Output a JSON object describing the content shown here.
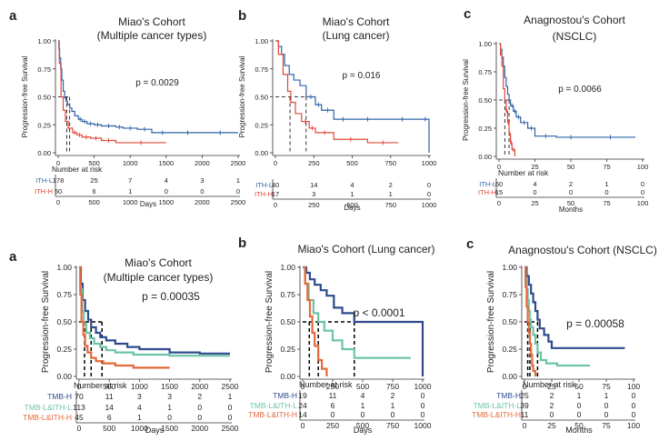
{
  "colors": {
    "ith_l": "#2e63a6",
    "ith_h": "#e0483a",
    "tmb_h": "#2f4b8c",
    "tmb_l_ith_l": "#6ec3a7",
    "tmb_l_ith_h": "#e36a3a",
    "axis": "#333333",
    "median_line": "#000000"
  },
  "chart_data": [
    {
      "type": "line",
      "panel_letter": "a",
      "title": "Miao's Cohort",
      "subtitle": "(Multiple cancer types)",
      "ylabel": "Progression-free Survival",
      "xlabel": "Days",
      "xlim": [
        0,
        2500
      ],
      "ylim": [
        0,
        1
      ],
      "xticks": [
        "0",
        "500",
        "1000",
        "1500",
        "2000",
        "2500"
      ],
      "yticks": [
        "0.00",
        "0.25",
        "0.50",
        "0.75",
        "1.00"
      ],
      "p_value": "p = 0.0029",
      "risk_title": "Number at risk",
      "series": [
        {
          "name": "ITH-L",
          "color_key": "ith_l",
          "risk": [
            "178",
            "25",
            "7",
            "4",
            "3",
            "1"
          ],
          "x": [
            0,
            10,
            20,
            35,
            50,
            70,
            90,
            110,
            130,
            160,
            190,
            230,
            280,
            330,
            400,
            500,
            600,
            800,
            900,
            1100,
            1300,
            1600,
            2000,
            2500
          ],
          "y": [
            1.0,
            0.93,
            0.85,
            0.75,
            0.65,
            0.55,
            0.49,
            0.46,
            0.43,
            0.4,
            0.37,
            0.33,
            0.3,
            0.28,
            0.26,
            0.25,
            0.24,
            0.23,
            0.22,
            0.21,
            0.18,
            0.18,
            0.18,
            0.18
          ]
        },
        {
          "name": "ITH-H",
          "color_key": "ith_h",
          "risk": [
            "50",
            "6",
            "1",
            "0",
            "0",
            "0"
          ],
          "x": [
            0,
            15,
            40,
            70,
            100,
            140,
            200,
            260,
            330,
            450,
            600,
            800,
            1500
          ],
          "y": [
            1.0,
            0.8,
            0.5,
            0.38,
            0.28,
            0.22,
            0.18,
            0.16,
            0.14,
            0.13,
            0.11,
            0.09,
            0.09
          ]
        }
      ],
      "medians": [
        120,
        160
      ]
    },
    {
      "type": "line",
      "panel_letter": "b",
      "title": "Miao's Cohort",
      "subtitle": "(Lung cancer)",
      "ylabel": "Progression-free Survival",
      "xlabel": "Days",
      "xlim": [
        0,
        1000
      ],
      "ylim": [
        0,
        1
      ],
      "xticks": [
        "0",
        "250",
        "500",
        "750",
        "1000"
      ],
      "yticks": [
        "0.00",
        "0.25",
        "0.50",
        "0.75",
        "1.00"
      ],
      "p_value": "p = 0.016",
      "risk_title": "",
      "series": [
        {
          "name": "ITH-L",
          "color_key": "ith_l",
          "risk": [
            "40",
            "14",
            "4",
            "2",
            "0"
          ],
          "x": [
            0,
            20,
            40,
            60,
            90,
            120,
            160,
            200,
            260,
            300,
            380,
            500,
            700,
            950,
            1000
          ],
          "y": [
            1.0,
            0.95,
            0.88,
            0.78,
            0.7,
            0.65,
            0.6,
            0.5,
            0.43,
            0.38,
            0.3,
            0.3,
            0.3,
            0.3,
            0.0
          ]
        },
        {
          "name": "ITH-H",
          "color_key": "ith_h",
          "risk": [
            "17",
            "3",
            "1",
            "1",
            "0"
          ],
          "x": [
            0,
            20,
            50,
            80,
            100,
            130,
            170,
            220,
            260,
            380,
            600,
            800
          ],
          "y": [
            1.0,
            0.88,
            0.7,
            0.55,
            0.45,
            0.35,
            0.28,
            0.22,
            0.18,
            0.12,
            0.09,
            0.09
          ]
        }
      ],
      "medians": [
        95,
        200
      ]
    },
    {
      "type": "line",
      "panel_letter": "c",
      "title": "Anagnostou's Cohort",
      "subtitle": "(NSCLC)",
      "ylabel": "Progression-free Survival",
      "xlabel": "Months",
      "xlim": [
        0,
        100
      ],
      "ylim": [
        0,
        1
      ],
      "xticks": [
        "0",
        "25",
        "50",
        "75",
        "100"
      ],
      "yticks": [
        "0.00",
        "0.25",
        "0.50",
        "0.75",
        "1.00"
      ],
      "p_value": "p = 0.0066",
      "risk_title": "Number at risk",
      "series": [
        {
          "name": "ITH-L",
          "color_key": "ith_l",
          "risk": [
            "60",
            "4",
            "2",
            "1",
            "0"
          ],
          "x": [
            0,
            1,
            2,
            3,
            4,
            5,
            6,
            7,
            8,
            10,
            12,
            15,
            20,
            25,
            40,
            60,
            95
          ],
          "y": [
            1.0,
            0.95,
            0.88,
            0.8,
            0.7,
            0.62,
            0.55,
            0.5,
            0.45,
            0.4,
            0.35,
            0.3,
            0.25,
            0.18,
            0.17,
            0.17,
            0.17
          ]
        },
        {
          "name": "ITH-H",
          "color_key": "ith_h",
          "risk": [
            "15",
            "0",
            "0",
            "0",
            "0"
          ],
          "x": [
            0,
            1,
            2,
            3,
            4,
            5,
            6,
            7,
            8,
            9,
            11
          ],
          "y": [
            1.0,
            0.9,
            0.8,
            0.6,
            0.5,
            0.4,
            0.3,
            0.2,
            0.12,
            0.06,
            0.0
          ]
        }
      ],
      "medians": [
        4,
        7
      ]
    },
    {
      "type": "line",
      "panel_letter": "a",
      "title": "Miao's Cohort",
      "subtitle": "(Multiple cancer types)",
      "ylabel": "Progression-free Survival",
      "xlabel": "Days",
      "xlim": [
        0,
        2500
      ],
      "ylim": [
        0,
        1
      ],
      "xticks": [
        "0",
        "500",
        "1000",
        "1500",
        "2000",
        "2500"
      ],
      "yticks": [
        "0.00",
        "0.25",
        "0.50",
        "0.75",
        "1.00"
      ],
      "p_value": "p = 0.00035",
      "risk_title": "Number at risk",
      "series": [
        {
          "name": "TMB-H",
          "color_key": "tmb_h",
          "risk": [
            "70",
            "11",
            "3",
            "3",
            "2",
            "1"
          ],
          "x": [
            0,
            30,
            60,
            100,
            150,
            200,
            280,
            350,
            450,
            600,
            800,
            1000,
            1500,
            2000,
            2500
          ],
          "y": [
            1.0,
            0.85,
            0.7,
            0.6,
            0.52,
            0.45,
            0.4,
            0.36,
            0.33,
            0.3,
            0.27,
            0.25,
            0.22,
            0.21,
            0.21
          ]
        },
        {
          "name": "TMB-L&ITH-L",
          "color_key": "tmb_l_ith_l",
          "risk": [
            "113",
            "14",
            "4",
            "1",
            "0",
            "0"
          ],
          "x": [
            0,
            20,
            50,
            80,
            120,
            180,
            250,
            350,
            450,
            600,
            900,
            1500,
            2000,
            2500
          ],
          "y": [
            1.0,
            0.8,
            0.6,
            0.48,
            0.4,
            0.35,
            0.3,
            0.27,
            0.24,
            0.22,
            0.2,
            0.19,
            0.19,
            0.19
          ]
        },
        {
          "name": "TMB-L&ITH-H",
          "color_key": "tmb_l_ith_h",
          "risk": [
            "45",
            "6",
            "1",
            "0",
            "0",
            "0"
          ],
          "x": [
            0,
            20,
            40,
            70,
            100,
            140,
            200,
            280,
            400,
            600,
            900,
            1500
          ],
          "y": [
            1.0,
            0.75,
            0.5,
            0.38,
            0.28,
            0.22,
            0.17,
            0.14,
            0.12,
            0.1,
            0.08,
            0.08
          ]
        }
      ],
      "medians": [
        90,
        200,
        380
      ]
    },
    {
      "type": "line",
      "panel_letter": "b",
      "title": "Miao's Cohort (Lung cancer)",
      "subtitle": "",
      "ylabel": "Progression-free Survival",
      "xlabel": "Days",
      "xlim": [
        0,
        1000
      ],
      "ylim": [
        0,
        1
      ],
      "xticks": [
        "0",
        "250",
        "500",
        "750",
        "1000"
      ],
      "yticks": [
        "0.00",
        "0.25",
        "0.50",
        "0.75",
        "1.00"
      ],
      "p_value": "p < 0.0001",
      "risk_title": "Number at risk",
      "series": [
        {
          "name": "TMB-H",
          "color_key": "tmb_h",
          "risk": [
            "19",
            "11",
            "4",
            "2",
            "0"
          ],
          "x": [
            0,
            30,
            60,
            100,
            150,
            200,
            260,
            330,
            430,
            500,
            700,
            950,
            1000
          ],
          "y": [
            1.0,
            0.95,
            0.89,
            0.84,
            0.79,
            0.74,
            0.63,
            0.58,
            0.5,
            0.5,
            0.5,
            0.5,
            0.0
          ]
        },
        {
          "name": "TMB-L&ITH-L",
          "color_key": "tmb_l_ith_l",
          "risk": [
            "24",
            "6",
            "1",
            "1",
            "0"
          ],
          "x": [
            0,
            20,
            50,
            90,
            130,
            180,
            250,
            330,
            430,
            700,
            900
          ],
          "y": [
            1.0,
            0.85,
            0.7,
            0.58,
            0.5,
            0.42,
            0.33,
            0.25,
            0.17,
            0.17,
            0.17
          ]
        },
        {
          "name": "TMB-L&ITH-H",
          "color_key": "tmb_l_ith_h",
          "risk": [
            "14",
            "0",
            "0",
            "0",
            "0"
          ],
          "x": [
            0,
            20,
            40,
            60,
            80,
            100,
            130,
            160,
            200
          ],
          "y": [
            1.0,
            0.85,
            0.7,
            0.55,
            0.4,
            0.28,
            0.15,
            0.07,
            0.0
          ]
        }
      ],
      "medians": [
        55,
        130,
        430
      ]
    },
    {
      "type": "line",
      "panel_letter": "c",
      "title": "Anagnostou's Cohort (NSCLC)",
      "subtitle": "",
      "ylabel": "Progression-free Survival",
      "xlabel": "Months",
      "xlim": [
        0,
        100
      ],
      "ylim": [
        0,
        1
      ],
      "xticks": [
        "0",
        "25",
        "50",
        "75",
        "100"
      ],
      "yticks": [
        "0.00",
        "0.25",
        "0.50",
        "0.75",
        "1.00"
      ],
      "p_value": "p = 0.00058",
      "risk_title": "Number at risk",
      "series": [
        {
          "name": "TMB-H",
          "color_key": "tmb_h",
          "risk": [
            "25",
            "2",
            "1",
            "1",
            "0"
          ],
          "x": [
            0,
            2,
            4,
            6,
            8,
            10,
            12,
            14,
            18,
            22,
            25,
            40,
            60,
            92
          ],
          "y": [
            1.0,
            0.92,
            0.84,
            0.76,
            0.68,
            0.6,
            0.52,
            0.44,
            0.38,
            0.32,
            0.26,
            0.26,
            0.26,
            0.26
          ]
        },
        {
          "name": "TMB-L&ITH-L",
          "color_key": "tmb_l_ith_l",
          "risk": [
            "39",
            "2",
            "0",
            "0",
            "0"
          ],
          "x": [
            0,
            1,
            2,
            3,
            4,
            5,
            6,
            8,
            10,
            12,
            15,
            20,
            30,
            60
          ],
          "y": [
            1.0,
            0.9,
            0.8,
            0.7,
            0.6,
            0.52,
            0.45,
            0.38,
            0.3,
            0.22,
            0.15,
            0.12,
            0.1,
            0.1
          ]
        },
        {
          "name": "TMB-L&ITH-H",
          "color_key": "tmb_l_ith_h",
          "risk": [
            "11",
            "0",
            "0",
            "0",
            "0"
          ],
          "x": [
            0,
            1,
            2,
            3,
            4,
            5,
            6,
            7,
            8,
            10
          ],
          "y": [
            1.0,
            0.82,
            0.64,
            0.5,
            0.4,
            0.3,
            0.2,
            0.1,
            0.05,
            0.0
          ]
        }
      ],
      "medians": [
        3,
        5,
        12
      ]
    }
  ]
}
